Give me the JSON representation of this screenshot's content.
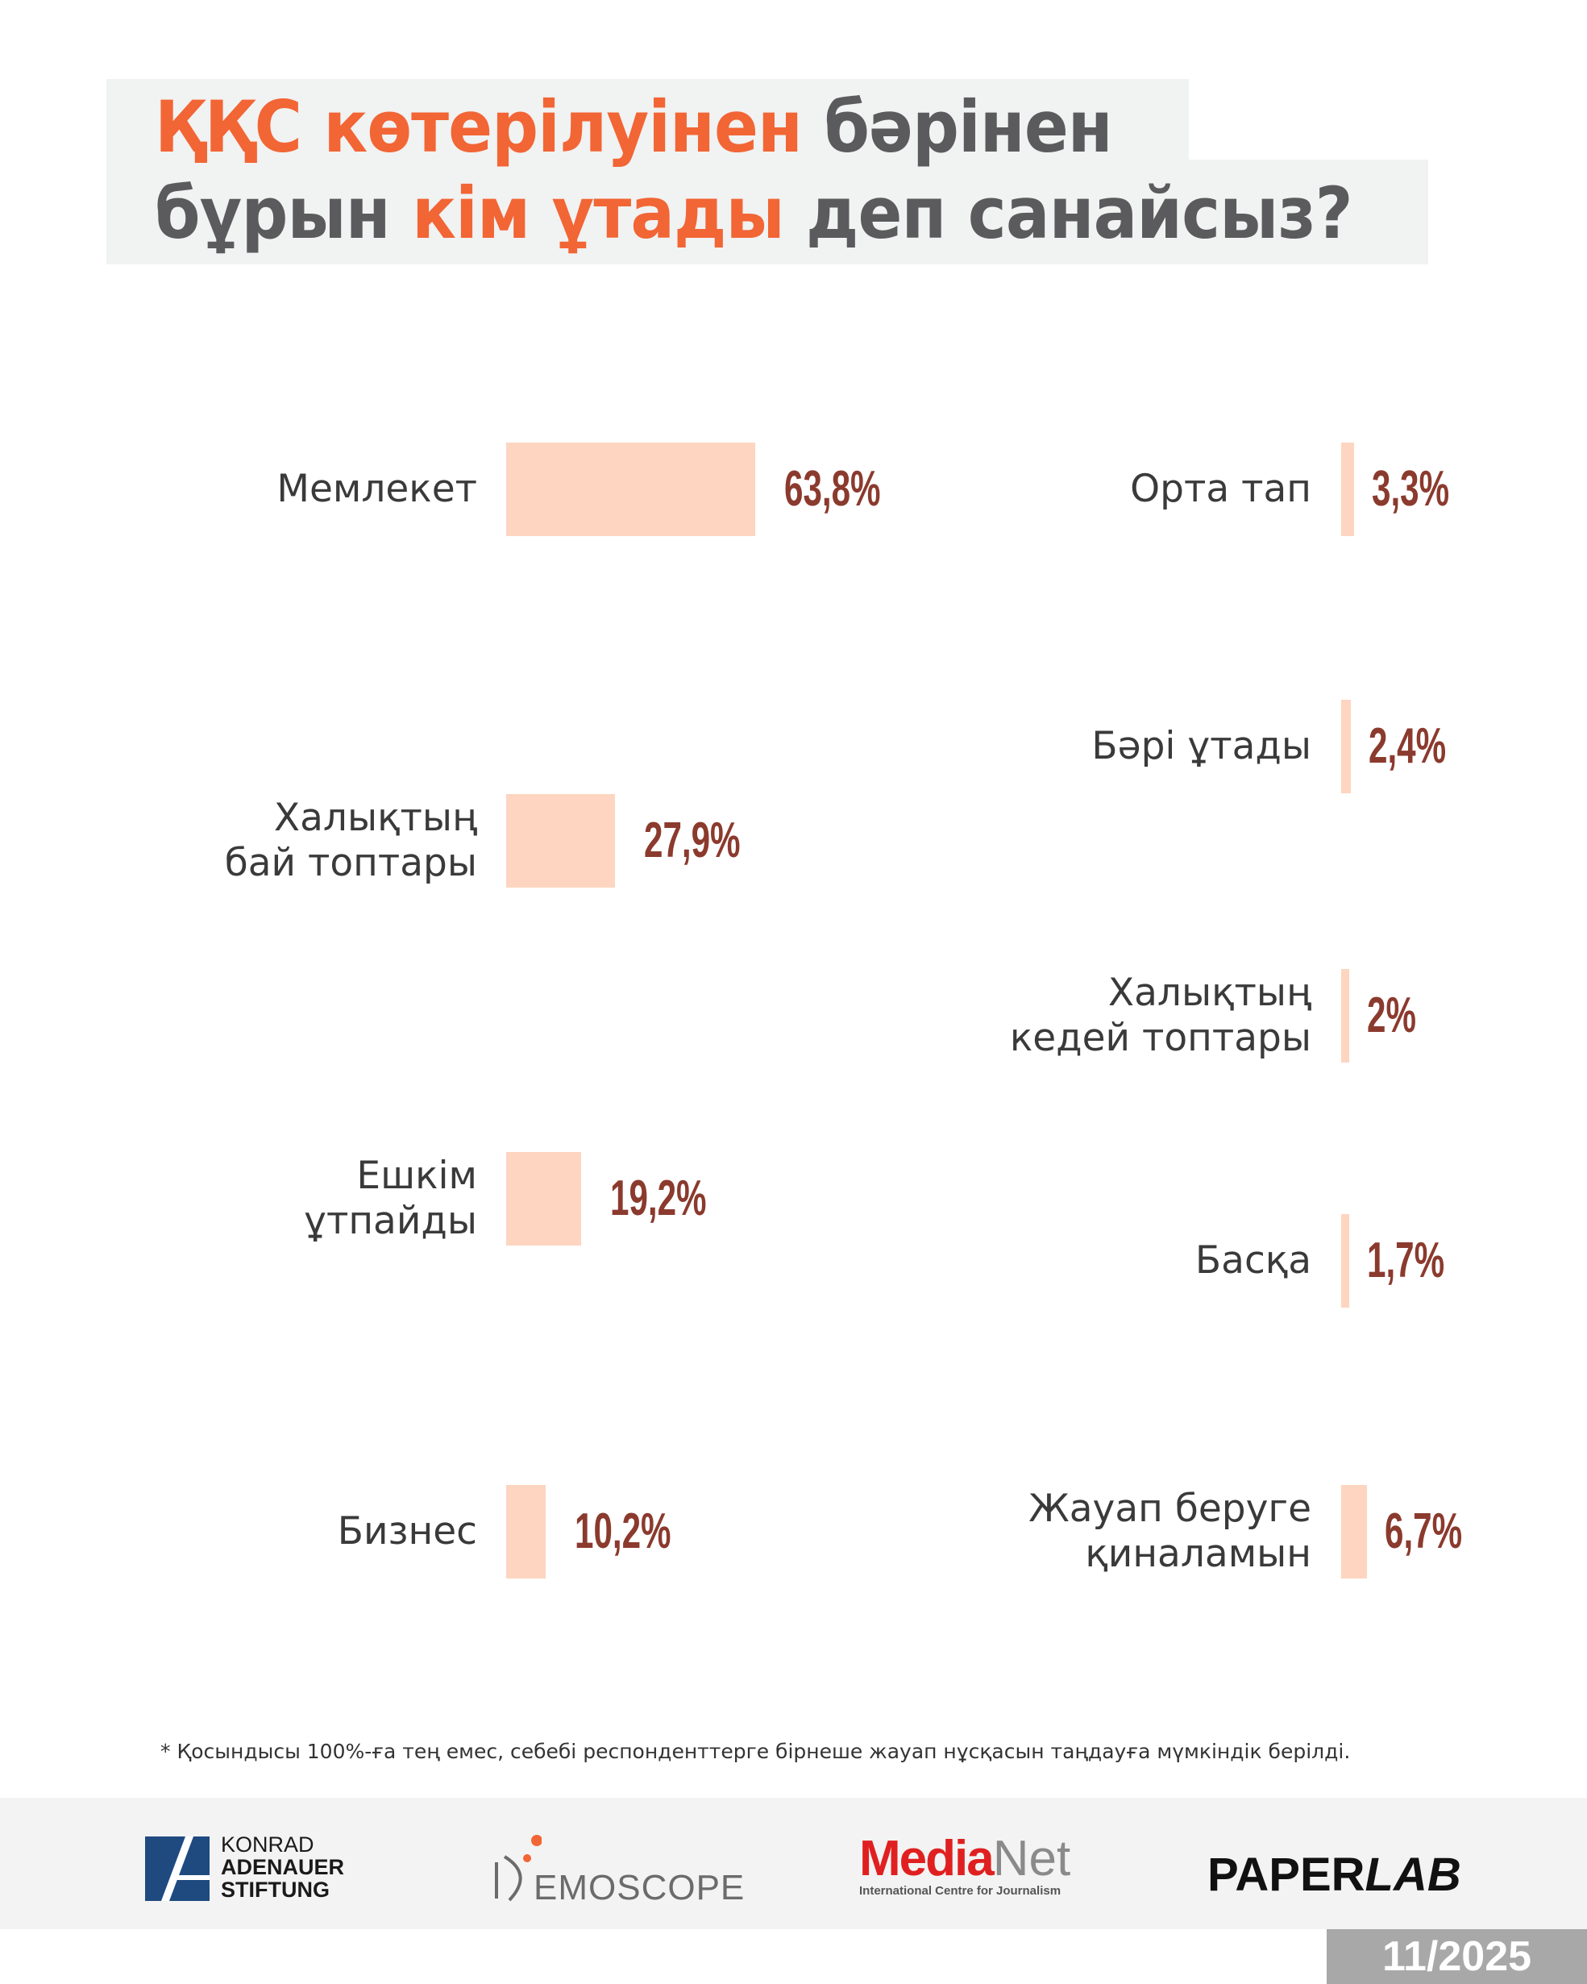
{
  "title": {
    "line1_highlight": "ҚҚС көтерілуінен",
    "line1_rest": " бәрінен",
    "line2_start": "бұрын ",
    "line2_highlight": "кім ұтады",
    "line2_rest": " деп санайсыз?"
  },
  "colors": {
    "accent": "#f26535",
    "title_gray": "#5b5b5d",
    "bar": "#fdd5c0",
    "value": "#8b3a2e"
  },
  "chart_data": {
    "type": "bar",
    "orientation": "horizontal",
    "title": "ҚҚС көтерілуінен бәрінен бұрын кім ұтады деп санайсыз?",
    "unit": "%",
    "columns": [
      {
        "categories": [
          "Мемлекет",
          "Халықтың бай топтары",
          "Ешкім ұтпайды",
          "Бизнес"
        ],
        "values": [
          63.8,
          27.9,
          19.2,
          10.2
        ],
        "labels": [
          "63,8%",
          "27,9%",
          "19,2%",
          "10,2%"
        ]
      },
      {
        "categories": [
          "Орта тап",
          "Бәрі ұтады",
          "Халықтың кедей топтары",
          "Басқа",
          "Жауап беруге қиналамын"
        ],
        "values": [
          3.3,
          2.4,
          2.0,
          1.7,
          6.7
        ],
        "labels": [
          "3,3%",
          "2,4%",
          "2%",
          "1,7%",
          "6,7%"
        ]
      }
    ],
    "xlabel": "",
    "ylabel": "",
    "xlim": [
      0,
      100
    ]
  },
  "left_labels": [
    [
      "Мемлекет"
    ],
    [
      "Халықтың",
      "бай топтары"
    ],
    [
      "Ешкім",
      "ұтпайды"
    ],
    [
      "Бизнес"
    ]
  ],
  "right_labels": [
    [
      "Орта тап"
    ],
    [
      "Бәрі ұтады"
    ],
    [
      "Халықтың",
      "кедей топтары"
    ],
    [
      "Басқа"
    ],
    [
      "Жауап беруге",
      "қиналамын"
    ]
  ],
  "footnote": "* Қосындысы 100%-ға тең емес, себебі респонденттерге бірнеше жауап нұсқасын таңдауға мүмкіндік берілді.",
  "logos": {
    "kas": [
      "KONRAD",
      "ADENAUER",
      "STIFTUNG"
    ],
    "demoscope": "EMOSCOPE",
    "medianet": {
      "red": "Media",
      "gray": "Net",
      "sub": "International Centre for Journalism"
    },
    "paperlab": {
      "a": "PAPER",
      "b": "LAB"
    }
  },
  "date": "11/2025"
}
